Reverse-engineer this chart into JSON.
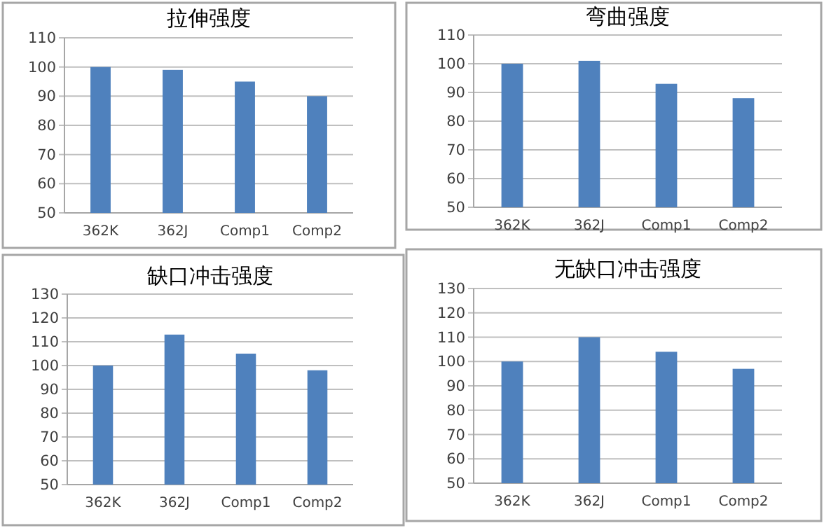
{
  "chart_data": [
    {
      "type": "bar",
      "title": "拉伸强度",
      "categories": [
        "362K",
        "362J",
        "Comp1",
        "Comp2"
      ],
      "values": [
        100,
        99,
        95,
        90
      ],
      "color": "#4f81bd",
      "ylim": [
        50,
        110
      ],
      "yticks": [
        50,
        60,
        70,
        80,
        90,
        100,
        110
      ],
      "grid": "y"
    },
    {
      "type": "bar",
      "title": "弯曲强度",
      "categories": [
        "362K",
        "362J",
        "Comp1",
        "Comp2"
      ],
      "values": [
        100,
        101,
        93,
        88
      ],
      "color": "#4f81bd",
      "ylim": [
        50,
        110
      ],
      "yticks": [
        50,
        60,
        70,
        80,
        90,
        100,
        110
      ],
      "grid": "y"
    },
    {
      "type": "bar",
      "title": "缺口冲击强度",
      "categories": [
        "362K",
        "362J",
        "Comp1",
        "Comp2"
      ],
      "values": [
        100,
        113,
        105,
        98
      ],
      "color": "#4f81bd",
      "ylim": [
        50,
        130
      ],
      "yticks": [
        50,
        60,
        70,
        80,
        90,
        100,
        110,
        120,
        130
      ],
      "grid": "y"
    },
    {
      "type": "bar",
      "title": "无缺口冲击强度",
      "categories": [
        "362K",
        "362J",
        "Comp1",
        "Comp2"
      ],
      "values": [
        100,
        110,
        104,
        97
      ],
      "color": "#4f81bd",
      "ylim": [
        50,
        130
      ],
      "yticks": [
        50,
        60,
        70,
        80,
        90,
        100,
        110,
        120,
        130
      ],
      "grid": "y"
    }
  ]
}
